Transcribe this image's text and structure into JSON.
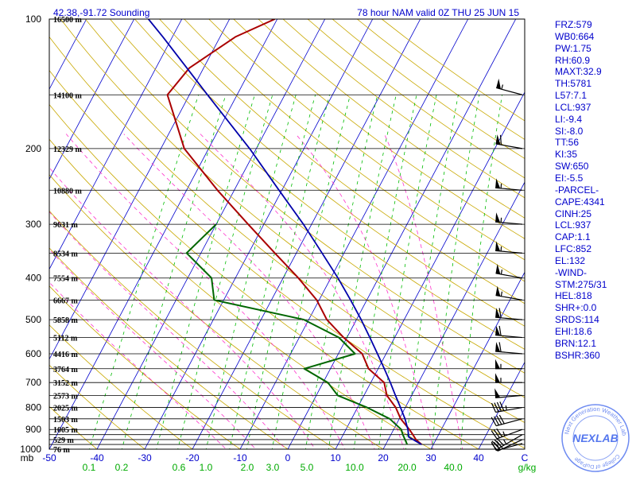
{
  "header": {
    "location": "42.38,-91.72 Sounding",
    "valid": "78 hour NAM valid 0Z THU 25 JUN 15"
  },
  "stats": [
    "FRZ:579",
    "WB0:664",
    "PW:1.75",
    "RH:60.9",
    "MAXT:32.9",
    "TH:5781",
    "L57:7.1",
    "LCL:937",
    "LI:-9.4",
    "SI:-8.0",
    "TT:56",
    "KI:35",
    "SW:650",
    "EI:-5.5",
    "-PARCEL-",
    "CAPE:4341",
    "CINH:25",
    "LCL:937",
    "CAP:1.1",
    "LFC:852",
    "EL:132",
    "-WIND-",
    "STM:275/31",
    "HEL:818",
    "SHR+:0.0",
    "SRDS:114",
    "EHI:18.6",
    "BRN:12.1",
    "BSHR:360"
  ],
  "logo": {
    "text": "NEXLAB",
    "ring_text": "Next Generation Weather Lab",
    "college": "College of DuPage"
  },
  "colors": {
    "frame": "#000000",
    "isobar": "#000000",
    "isotherm": "#0000cc",
    "dry_adiabat": "#c8a800",
    "moist_adiabat": "#ff33cc",
    "mixing_ratio": "#00bb00",
    "temperature": "#aa0000",
    "dewpoint": "#006600",
    "parcel": "#0000aa",
    "label_blue": "#0000cc",
    "label_green": "#00aa00",
    "logo": "#5577ee"
  },
  "chart_data": {
    "type": "line",
    "skew_t": true,
    "ylabel": "mb",
    "xlabel": "C",
    "x_unit": "C",
    "y_scale": "log",
    "ylim": [
      1000,
      100
    ],
    "xlim": [
      -50,
      50
    ],
    "pressure_tick_labels": [
      {
        "p": 100,
        "label": "100"
      },
      {
        "p": 200,
        "label": "200"
      },
      {
        "p": 300,
        "label": "300"
      },
      {
        "p": 400,
        "label": "400"
      },
      {
        "p": 500,
        "label": "500"
      },
      {
        "p": 600,
        "label": "600"
      },
      {
        "p": 700,
        "label": "700"
      },
      {
        "p": 800,
        "label": "800"
      },
      {
        "p": 900,
        "label": "900"
      },
      {
        "p": 1000,
        "label": "1000"
      }
    ],
    "x_tick_labels": [
      {
        "t": -50,
        "label": "-50"
      },
      {
        "t": -40,
        "label": "-40"
      },
      {
        "t": -30,
        "label": "-30"
      },
      {
        "t": -20,
        "label": "-20"
      },
      {
        "t": -10,
        "label": "-10"
      },
      {
        "t": 0,
        "label": "0"
      },
      {
        "t": 10,
        "label": "10"
      },
      {
        "t": 20,
        "label": "20"
      },
      {
        "t": 30,
        "label": "30"
      },
      {
        "t": 40,
        "label": "40"
      }
    ],
    "mixing_ratio_labels": [
      {
        "w": 0.1,
        "label": "0.1"
      },
      {
        "w": 0.2,
        "label": "0.2"
      },
      {
        "w": 0.6,
        "label": "0.6"
      },
      {
        "w": 1.0,
        "label": "1.0"
      },
      {
        "w": 2.0,
        "label": "2.0"
      },
      {
        "w": 3.0,
        "label": "3.0"
      },
      {
        "w": 5.0,
        "label": "5.0"
      },
      {
        "w": 10.0,
        "label": "10.0"
      },
      {
        "w": 20.0,
        "label": "20.0"
      },
      {
        "w": 40.0,
        "label": "40.0"
      }
    ],
    "mixing_ratio_unit": "g/kg",
    "isobars": [
      100,
      150,
      200,
      250,
      300,
      350,
      400,
      450,
      500,
      550,
      600,
      650,
      700,
      750,
      800,
      850,
      900,
      925,
      950,
      975,
      1000
    ],
    "height_labels": [
      {
        "p": 100,
        "label": "16500 m"
      },
      {
        "p": 150,
        "label": "14100 m"
      },
      {
        "p": 200,
        "label": "12329 m"
      },
      {
        "p": 250,
        "label": "10880 m"
      },
      {
        "p": 300,
        "label": "9631 m"
      },
      {
        "p": 350,
        "label": "8534 m"
      },
      {
        "p": 400,
        "label": "7554 m"
      },
      {
        "p": 450,
        "label": "6667 m"
      },
      {
        "p": 500,
        "label": "5858 m"
      },
      {
        "p": 550,
        "label": "5112 m"
      },
      {
        "p": 600,
        "label": "4416 m"
      },
      {
        "p": 650,
        "label": "3764 m"
      },
      {
        "p": 700,
        "label": "3152 m"
      },
      {
        "p": 750,
        "label": "2573 m"
      },
      {
        "p": 800,
        "label": "2025 m"
      },
      {
        "p": 850,
        "label": "1503 m"
      },
      {
        "p": 900,
        "label": "1005 m"
      },
      {
        "p": 950,
        "label": "529 m"
      },
      {
        "p": 1000,
        "label": "76 m"
      }
    ],
    "series": [
      {
        "key": "temperature",
        "points": [
          {
            "p": 975,
            "t": 27.5
          },
          {
            "p": 950,
            "t": 25.8
          },
          {
            "p": 925,
            "t": 24.6
          },
          {
            "p": 900,
            "t": 23.3
          },
          {
            "p": 850,
            "t": 20.3
          },
          {
            "p": 800,
            "t": 18.0
          },
          {
            "p": 750,
            "t": 14.8
          },
          {
            "p": 700,
            "t": 12.8
          },
          {
            "p": 650,
            "t": 8.0
          },
          {
            "p": 600,
            "t": 5.0
          },
          {
            "p": 550,
            "t": -0.7
          },
          {
            "p": 500,
            "t": -6.2
          },
          {
            "p": 450,
            "t": -10.5
          },
          {
            "p": 400,
            "t": -16.8
          },
          {
            "p": 350,
            "t": -24.5
          },
          {
            "p": 300,
            "t": -33.3
          },
          {
            "p": 250,
            "t": -43.5
          },
          {
            "p": 200,
            "t": -55.1
          },
          {
            "p": 150,
            "t": -64.6
          },
          {
            "p": 130,
            "t": -63.0
          },
          {
            "p": 110,
            "t": -56.8
          },
          {
            "p": 100,
            "t": -50.5
          }
        ]
      },
      {
        "key": "dewpoint",
        "points": [
          {
            "p": 975,
            "t": 24.5
          },
          {
            "p": 925,
            "t": 22.5
          },
          {
            "p": 900,
            "t": 21.6
          },
          {
            "p": 850,
            "t": 18.0
          },
          {
            "p": 800,
            "t": 12.0
          },
          {
            "p": 750,
            "t": 4.5
          },
          {
            "p": 700,
            "t": 1.0
          },
          {
            "p": 650,
            "t": -5.5
          },
          {
            "p": 600,
            "t": 3.5
          },
          {
            "p": 550,
            "t": -1.7
          },
          {
            "p": 500,
            "t": -11.0
          },
          {
            "p": 450,
            "t": -32.0
          },
          {
            "p": 400,
            "t": -35.0
          },
          {
            "p": 350,
            "t": -43.0
          },
          {
            "p": 300,
            "t": -40.0
          }
        ]
      },
      {
        "key": "parcel",
        "points": [
          {
            "p": 975,
            "t": 27.5
          },
          {
            "p": 937,
            "t": 24.0
          },
          {
            "p": 900,
            "t": 23.0
          },
          {
            "p": 850,
            "t": 21.2
          },
          {
            "p": 800,
            "t": 19.0
          },
          {
            "p": 750,
            "t": 16.6
          },
          {
            "p": 700,
            "t": 14.1
          },
          {
            "p": 650,
            "t": 11.3
          },
          {
            "p": 600,
            "t": 8.2
          },
          {
            "p": 550,
            "t": 4.8
          },
          {
            "p": 500,
            "t": 1.0
          },
          {
            "p": 450,
            "t": -3.4
          },
          {
            "p": 400,
            "t": -8.5
          },
          {
            "p": 350,
            "t": -14.6
          },
          {
            "p": 300,
            "t": -21.7
          },
          {
            "p": 250,
            "t": -30.6
          },
          {
            "p": 200,
            "t": -41.4
          },
          {
            "p": 150,
            "t": -56.2
          },
          {
            "p": 130,
            "t": -63.5
          },
          {
            "p": 110,
            "t": -72.0
          },
          {
            "p": 100,
            "t": -77.0
          }
        ]
      }
    ],
    "wind_barbs": [
      {
        "p": 970,
        "dir": 255,
        "spd": 15
      },
      {
        "p": 950,
        "dir": 245,
        "spd": 30
      },
      {
        "p": 925,
        "dir": 240,
        "spd": 35
      },
      {
        "p": 900,
        "dir": 250,
        "spd": 35
      },
      {
        "p": 850,
        "dir": 255,
        "spd": 40
      },
      {
        "p": 800,
        "dir": 260,
        "spd": 45
      },
      {
        "p": 750,
        "dir": 265,
        "spd": 50
      },
      {
        "p": 700,
        "dir": 270,
        "spd": 55
      },
      {
        "p": 650,
        "dir": 270,
        "spd": 55
      },
      {
        "p": 600,
        "dir": 275,
        "spd": 60
      },
      {
        "p": 550,
        "dir": 275,
        "spd": 60
      },
      {
        "p": 500,
        "dir": 275,
        "spd": 60
      },
      {
        "p": 450,
        "dir": 280,
        "spd": 55
      },
      {
        "p": 400,
        "dir": 280,
        "spd": 55
      },
      {
        "p": 350,
        "dir": 275,
        "spd": 55
      },
      {
        "p": 300,
        "dir": 275,
        "spd": 55
      },
      {
        "p": 250,
        "dir": 275,
        "spd": 55
      },
      {
        "p": 200,
        "dir": 280,
        "spd": 60
      },
      {
        "p": 150,
        "dir": 285,
        "spd": 55
      }
    ]
  }
}
